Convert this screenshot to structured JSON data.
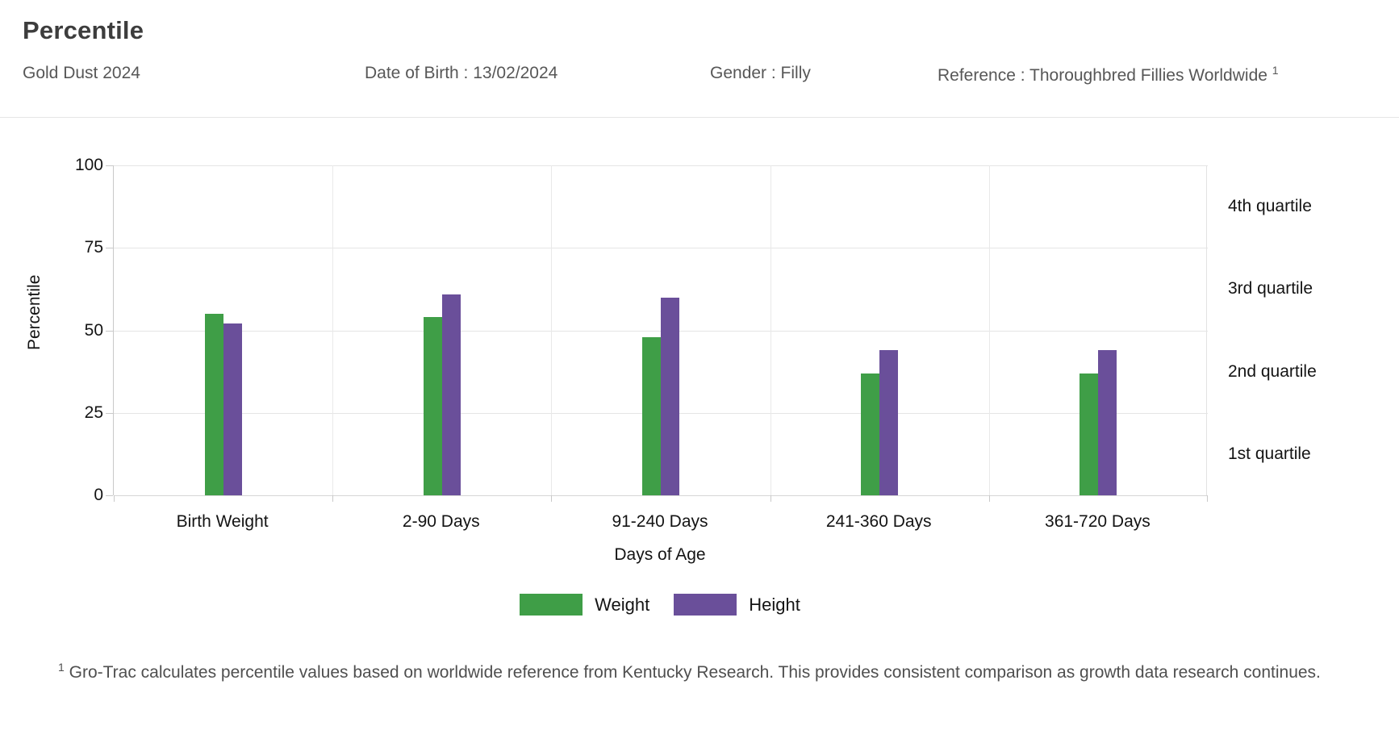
{
  "header": {
    "title": "Percentile",
    "horse_name": "Gold Dust 2024",
    "date_of_birth": "Date of Birth : 13/02/2024",
    "gender": "Gender : Filly",
    "reference": "Reference : Thoroughbred Fillies Worldwide",
    "reference_superscript": "1"
  },
  "chart_data": {
    "type": "bar",
    "title": "Percentile",
    "categories": [
      "Birth Weight",
      "2-90 Days",
      "91-240 Days",
      "241-360 Days",
      "361-720 Days"
    ],
    "series": [
      {
        "name": "Weight",
        "color": "#3f9e47",
        "values": [
          55,
          54,
          48,
          37,
          37
        ]
      },
      {
        "name": "Height",
        "color": "#6a4f9a",
        "values": [
          52,
          61,
          60,
          44,
          44
        ]
      }
    ],
    "xlabel": "Days of Age",
    "ylabel": "Percentile",
    "ylim": [
      0,
      100
    ],
    "yticks": [
      0,
      25,
      50,
      75,
      100
    ],
    "grid": true,
    "legend_position": "bottom",
    "right_axis_labels": [
      "4th quartile",
      "3rd quartile",
      "2nd quartile",
      "1st quartile"
    ]
  },
  "footnote": {
    "superscript": "1",
    "text": " Gro-Trac calculates percentile values based on worldwide reference from Kentucky Research. This provides consistent comparison as growth data research continues."
  },
  "colors": {
    "weight_bar": "#3f9e47",
    "height_bar": "#6a4f9a",
    "title_text": "#3d3d3d",
    "meta_text": "#575757",
    "chart_text": "#141414",
    "gridline": "#e5e5e5",
    "separator": "#e6e6e6",
    "footnote_text": "#4f4f4f"
  }
}
